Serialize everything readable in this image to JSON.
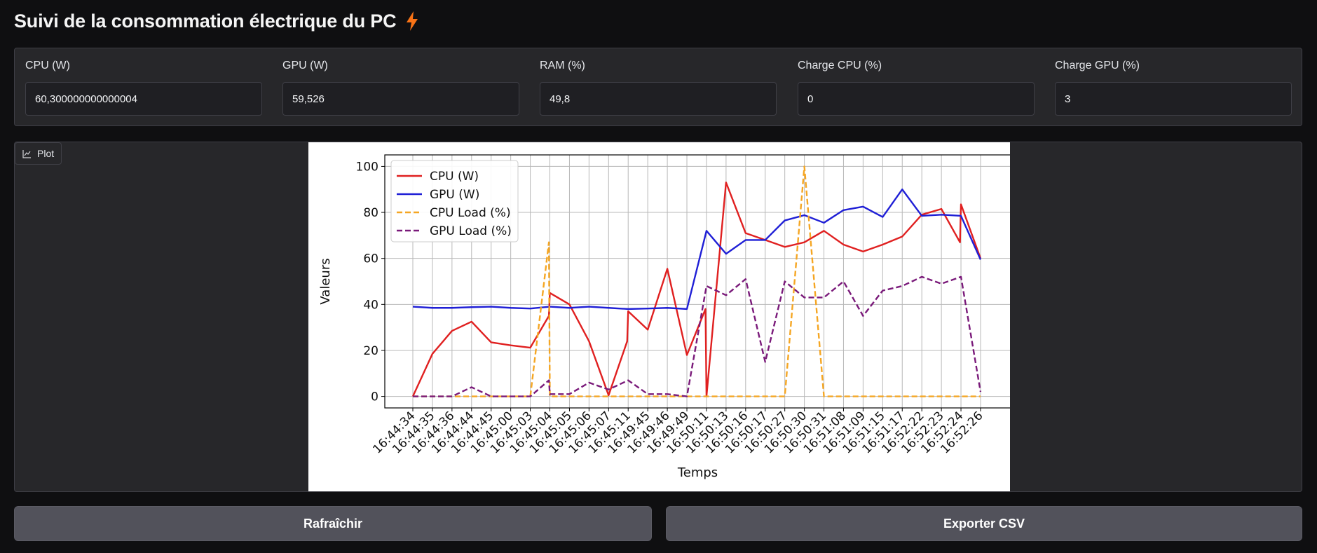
{
  "header": {
    "title": "Suivi de la consommation électrique du PC",
    "icon": "lightning-icon",
    "icon_color": "#f97316"
  },
  "fields": [
    {
      "label": "CPU (W)",
      "value": "60,300000000000004"
    },
    {
      "label": "GPU (W)",
      "value": "59,526"
    },
    {
      "label": "RAM (%)",
      "value": "49,8"
    },
    {
      "label": "Charge CPU (%)",
      "value": "0"
    },
    {
      "label": "Charge GPU (%)",
      "value": "3"
    }
  ],
  "plot": {
    "tab_label": "Plot",
    "tab_icon": "chart-icon"
  },
  "buttons": {
    "refresh": "Rafraîchir",
    "export": "Exporter CSV"
  },
  "chart_data": {
    "type": "line",
    "xlabel": "Temps",
    "ylabel": "Valeurs",
    "ylim": [
      -5,
      105
    ],
    "yticks": [
      0,
      20,
      40,
      60,
      80,
      100
    ],
    "grid": true,
    "legend": "top-left",
    "categories": [
      "16:44:34",
      "16:44:35",
      "16:44:36",
      "16:44:44",
      "16:44:45",
      "16:45:00",
      "16:45:03",
      "16:45:04",
      "16:45:05",
      "16:45:06",
      "16:45:07",
      "16:45:11",
      "16:49:45",
      "16:49:46",
      "16:49:49",
      "16:50:11",
      "16:50:13",
      "16:50:16",
      "16:50:17",
      "16:50:27",
      "16:50:30",
      "16:50:31",
      "16:51:08",
      "16:51:09",
      "16:51:15",
      "16:51:17",
      "16:52:22",
      "16:52:23",
      "16:52:24",
      "16:52:26"
    ],
    "x": [
      0,
      1,
      2,
      3,
      4,
      5,
      6,
      6.95,
      7,
      8,
      9,
      10,
      10.95,
      11,
      12,
      13,
      14,
      14.95,
      15,
      16,
      17,
      18,
      19,
      20,
      21,
      22,
      23,
      24,
      25,
      26,
      27,
      27.95,
      28,
      29
    ],
    "series": [
      {
        "name": "CPU (W)",
        "color": "#e02020",
        "dash": false,
        "x": [
          0,
          1,
          2,
          3,
          4,
          5,
          6,
          6.95,
          7,
          8,
          9,
          10,
          10.95,
          11,
          12,
          13,
          14,
          14.95,
          15,
          16,
          17,
          18,
          19,
          20,
          21,
          22,
          23,
          24,
          25,
          26,
          27,
          27.95,
          28,
          29
        ],
        "values": [
          0,
          18.5,
          28.5,
          32.5,
          23.5,
          22.2,
          21.2,
          35,
          45,
          40,
          24,
          0.5,
          24,
          37,
          29,
          55.5,
          18,
          38,
          0,
          93,
          71,
          68,
          65,
          67,
          72,
          66,
          63,
          66,
          69.5,
          79,
          81.5,
          67,
          83.5,
          60
        ]
      },
      {
        "name": "GPU (W)",
        "color": "#1f1fd6",
        "dash": false,
        "x": [
          0,
          1,
          2,
          3,
          4,
          5,
          6,
          7,
          8,
          9,
          10,
          11,
          12,
          13,
          14,
          15,
          16,
          17,
          18,
          19,
          20,
          21,
          22,
          23,
          24,
          25,
          26,
          27,
          28,
          29
        ],
        "values": [
          39,
          38.5,
          38.5,
          38.8,
          39,
          38.5,
          38.2,
          39,
          38.5,
          39,
          38.5,
          38,
          38.2,
          38.5,
          38,
          72,
          62,
          68,
          68,
          76.5,
          78.8,
          75.5,
          81,
          82.5,
          78,
          90,
          78.5,
          79,
          78.5,
          59.5
        ]
      },
      {
        "name": "CPU Load (%)",
        "color": "#f5a623",
        "dash": true,
        "x": [
          0,
          1,
          2,
          3,
          4,
          5,
          6,
          6.95,
          7,
          8,
          9,
          10,
          11,
          12,
          13,
          14,
          15,
          16,
          17,
          18,
          19,
          20,
          21,
          22,
          23,
          24,
          25,
          26,
          27,
          28,
          29
        ],
        "values": [
          0,
          0,
          0,
          0,
          0,
          0,
          0,
          67,
          0,
          0,
          0,
          0,
          0,
          0,
          0,
          0,
          0,
          0,
          0,
          0,
          0,
          100,
          0,
          0,
          0,
          0,
          0,
          0,
          0,
          0,
          0
        ]
      },
      {
        "name": "GPU Load (%)",
        "color": "#7a1a7a",
        "dash": true,
        "x": [
          0,
          1,
          2,
          3,
          4,
          5,
          6,
          6.95,
          7,
          8,
          9,
          10,
          11,
          12,
          13,
          14,
          15,
          16,
          17,
          18,
          19,
          20,
          21,
          22,
          23,
          24,
          25,
          26,
          27,
          28,
          29
        ],
        "values": [
          0,
          0,
          0,
          4,
          0,
          0,
          0,
          7,
          1,
          1,
          6,
          3,
          7,
          1,
          1,
          0,
          48,
          44,
          51,
          15,
          50,
          43,
          43,
          50,
          35,
          46,
          48,
          52,
          49,
          52,
          2
        ]
      }
    ]
  }
}
